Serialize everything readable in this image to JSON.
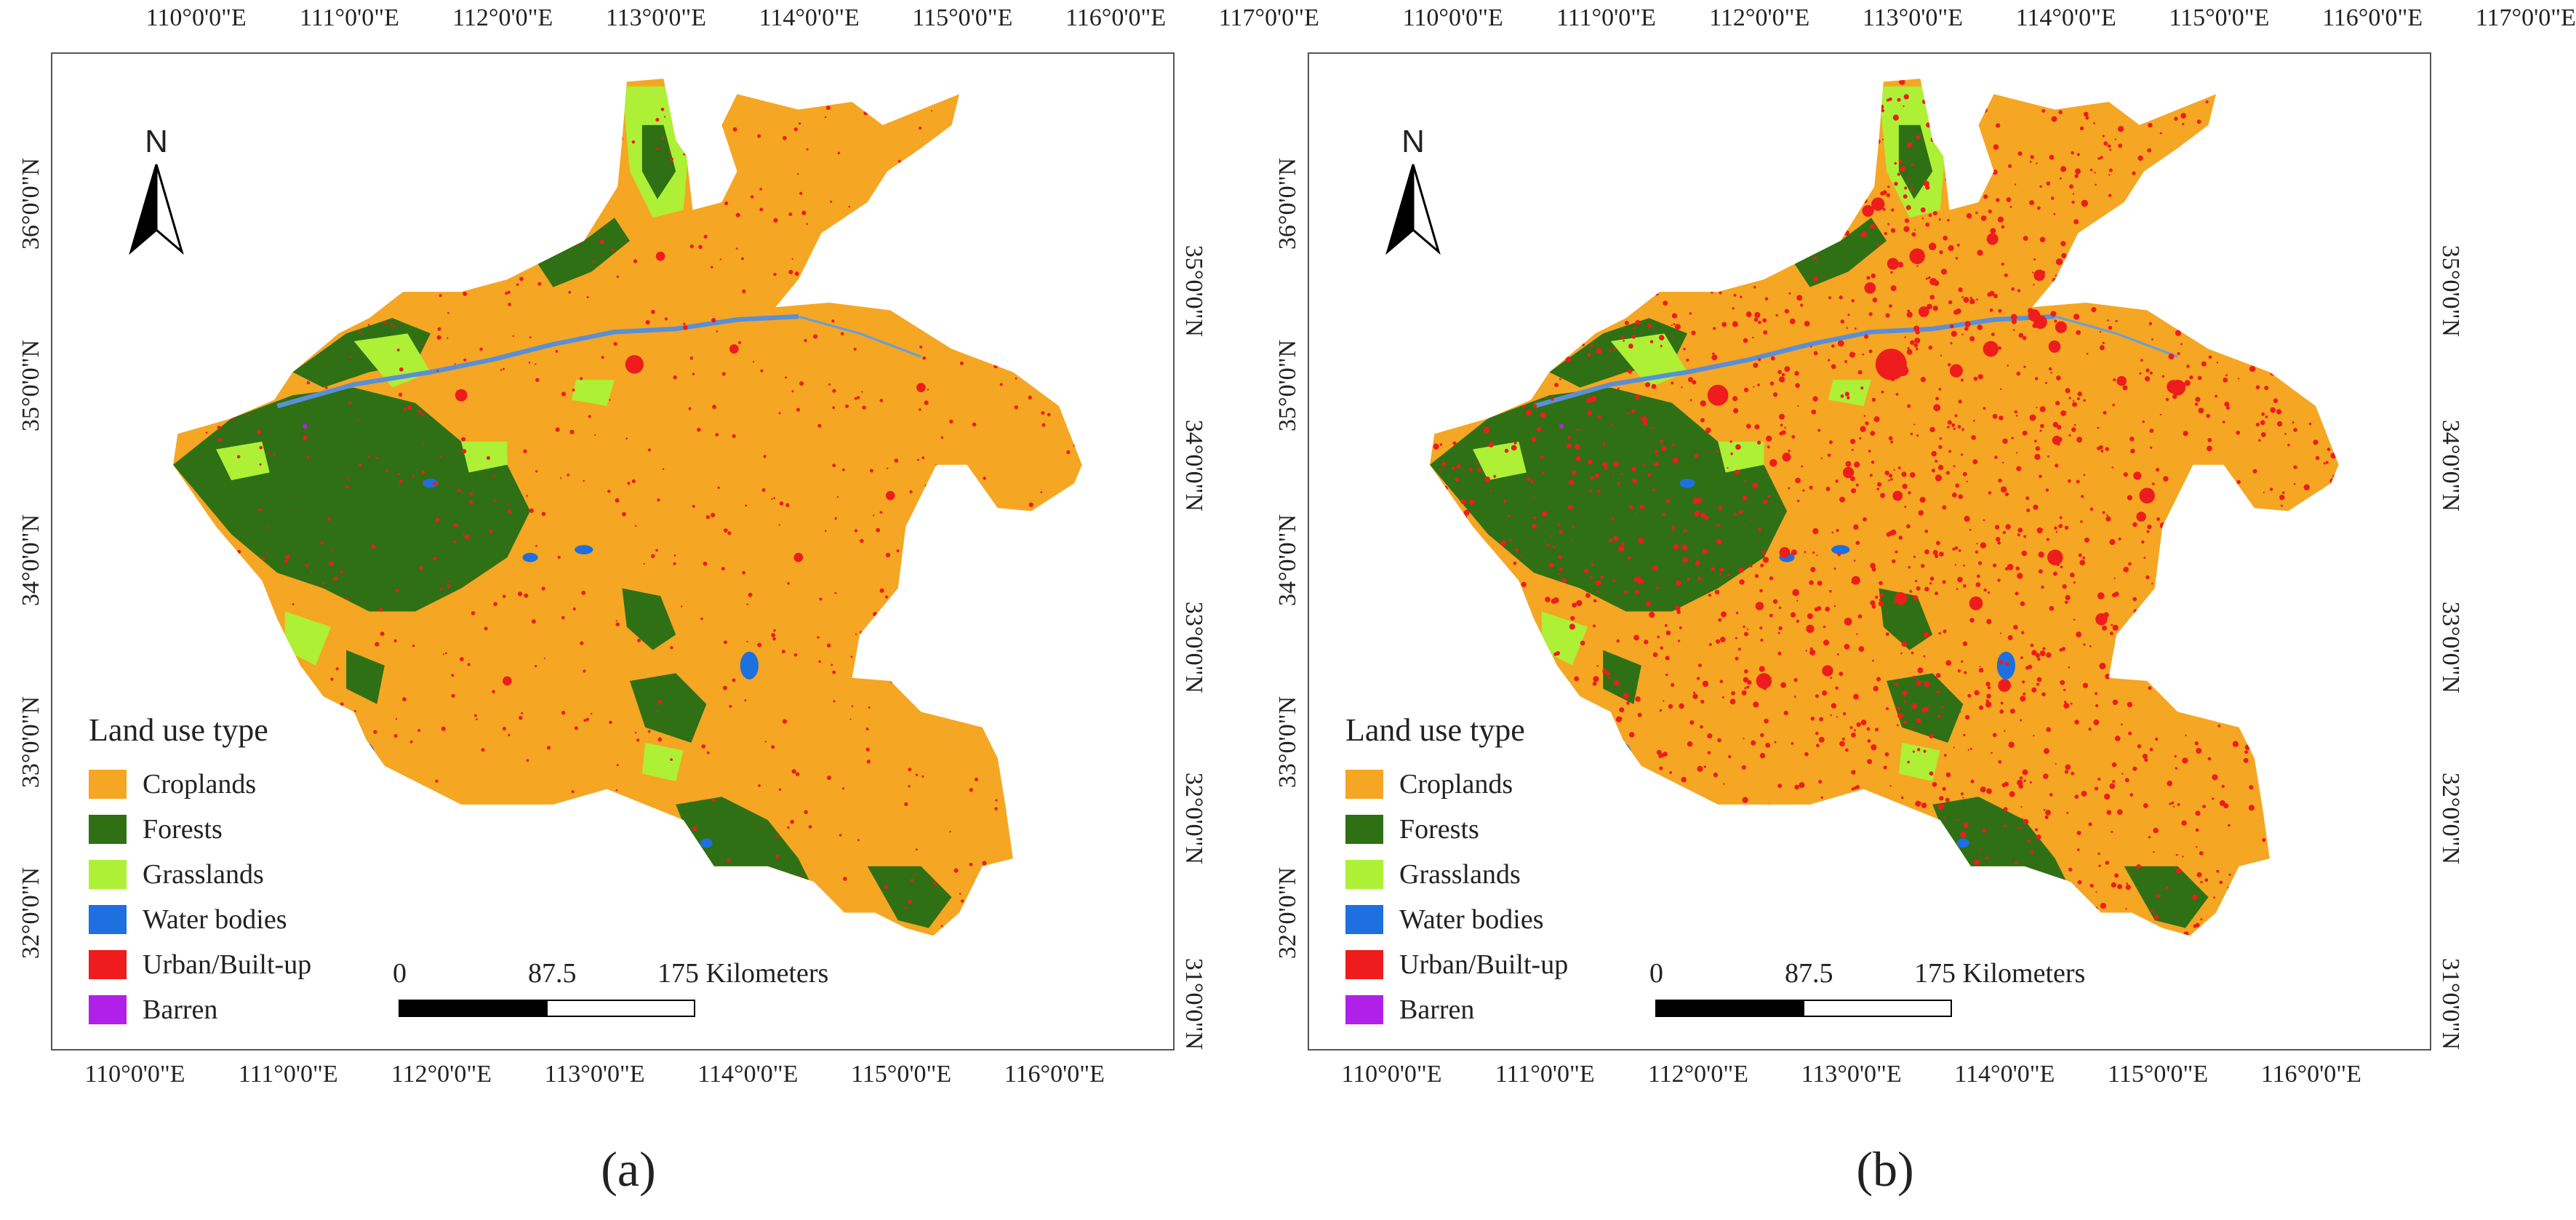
{
  "panels": [
    {
      "id": "a",
      "caption": "(a)",
      "top_ticks": [
        "110°0'0\"E",
        "111°0'0\"E",
        "112°0'0\"E",
        "113°0'0\"E",
        "114°0'0\"E",
        "115°0'0\"E",
        "116°0'0\"E",
        "117°0'0\"E"
      ],
      "bottom_ticks": [
        "110°0'0\"E",
        "111°0'0\"E",
        "112°0'0\"E",
        "113°0'0\"E",
        "114°0'0\"E",
        "115°0'0\"E",
        "116°0'0\"E"
      ],
      "left_ticks": [
        "36°0'0\"N",
        "35°0'0\"N",
        "34°0'0\"N",
        "33°0'0\"N",
        "32°0'0\"N"
      ],
      "right_ticks": [
        "35°0'0\"N",
        "34°0'0\"N",
        "33°0'0\"N",
        "32°0'0\"N",
        "31°0'0\"N"
      ],
      "north_label": "N",
      "legend_title": "Land use type",
      "scale": {
        "zero": "0",
        "mid": "87.5",
        "end": "175 Kilometers"
      },
      "urban_level": "low"
    },
    {
      "id": "b",
      "caption": "(b)",
      "top_ticks": [
        "110°0'0\"E",
        "111°0'0\"E",
        "112°0'0\"E",
        "113°0'0\"E",
        "114°0'0\"E",
        "115°0'0\"E",
        "116°0'0\"E",
        "117°0'0\"E"
      ],
      "bottom_ticks": [
        "110°0'0\"E",
        "111°0'0\"E",
        "112°0'0\"E",
        "113°0'0\"E",
        "114°0'0\"E",
        "115°0'0\"E",
        "116°0'0\"E"
      ],
      "left_ticks": [
        "36°0'0\"N",
        "35°0'0\"N",
        "34°0'0\"N",
        "33°0'0\"N",
        "32°0'0\"N"
      ],
      "right_ticks": [
        "35°0'0\"N",
        "34°0'0\"N",
        "33°0'0\"N",
        "32°0'0\"N",
        "31°0'0\"N"
      ],
      "north_label": "N",
      "legend_title": "Land use type",
      "scale": {
        "zero": "0",
        "mid": "87.5",
        "end": "175 Kilometers"
      },
      "urban_level": "high"
    }
  ],
  "legend_items": [
    {
      "label": "Croplands",
      "color": "#F5A623"
    },
    {
      "label": "Forests",
      "color": "#2E7013"
    },
    {
      "label": "Grasslands",
      "color": "#ADF036"
    },
    {
      "label": "Water bodies",
      "color": "#1E6FE0"
    },
    {
      "label": "Urban/Built-up",
      "color": "#EE1C1C"
    },
    {
      "label": "Barren",
      "color": "#B020E8"
    }
  ]
}
